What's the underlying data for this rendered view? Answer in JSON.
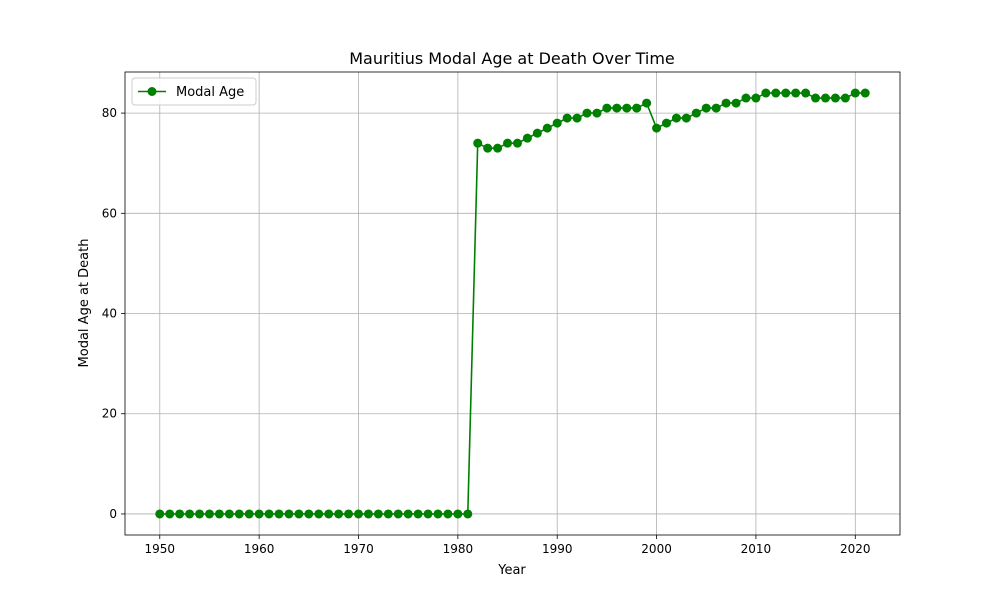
{
  "chart_data": {
    "type": "line",
    "title": "Mauritius Modal Age at Death Over Time",
    "xlabel": "Year",
    "ylabel": "Modal Age at Death",
    "xlim": [
      1946.5,
      2024.5
    ],
    "ylim": [
      -4.2,
      88.2
    ],
    "xticks": [
      1950,
      1960,
      1970,
      1980,
      1990,
      2000,
      2010,
      2020
    ],
    "yticks": [
      0,
      20,
      40,
      60,
      80
    ],
    "grid": true,
    "legend_position": "upper left",
    "series": [
      {
        "name": "Modal Age",
        "color": "#008000",
        "marker": "circle",
        "x": [
          1950,
          1951,
          1952,
          1953,
          1954,
          1955,
          1956,
          1957,
          1958,
          1959,
          1960,
          1961,
          1962,
          1963,
          1964,
          1965,
          1966,
          1967,
          1968,
          1969,
          1970,
          1971,
          1972,
          1973,
          1974,
          1975,
          1976,
          1977,
          1978,
          1979,
          1980,
          1981,
          1982,
          1983,
          1984,
          1985,
          1986,
          1987,
          1988,
          1989,
          1990,
          1991,
          1992,
          1993,
          1994,
          1995,
          1996,
          1997,
          1998,
          1999,
          2000,
          2001,
          2002,
          2003,
          2004,
          2005,
          2006,
          2007,
          2008,
          2009,
          2010,
          2011,
          2012,
          2013,
          2014,
          2015,
          2016,
          2017,
          2018,
          2019,
          2020,
          2021
        ],
        "y": [
          0,
          0,
          0,
          0,
          0,
          0,
          0,
          0,
          0,
          0,
          0,
          0,
          0,
          0,
          0,
          0,
          0,
          0,
          0,
          0,
          0,
          0,
          0,
          0,
          0,
          0,
          0,
          0,
          0,
          0,
          0,
          0,
          74,
          73,
          73,
          74,
          74,
          75,
          76,
          77,
          78,
          79,
          79,
          80,
          80,
          81,
          81,
          81,
          81,
          82,
          77,
          78,
          79,
          79,
          80,
          81,
          81,
          82,
          82,
          83,
          83,
          84,
          84,
          84,
          84,
          84,
          83,
          83,
          83,
          83,
          84,
          84
        ]
      }
    ]
  }
}
